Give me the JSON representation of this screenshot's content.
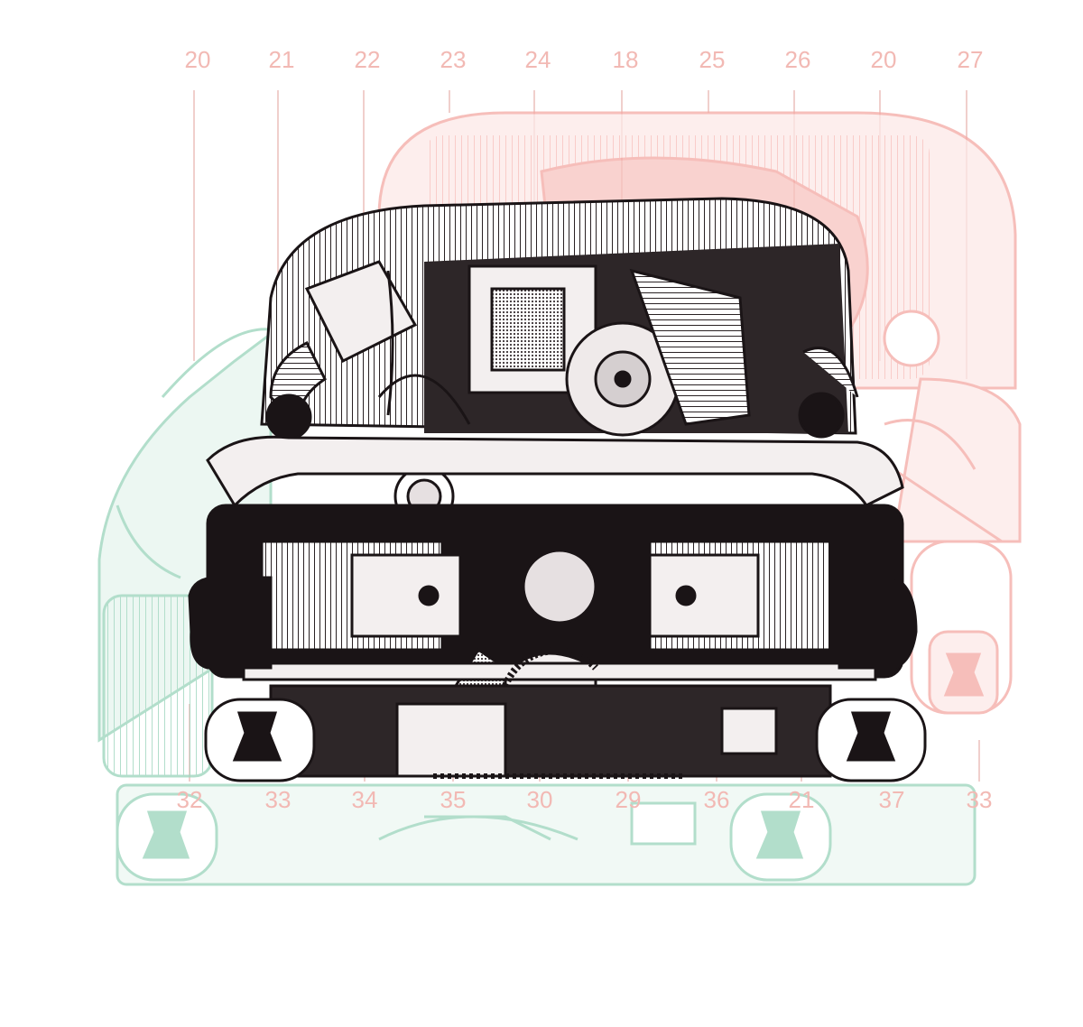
{
  "diagram": {
    "top_callouts": [
      "20",
      "21",
      "22",
      "23",
      "24",
      "18",
      "25",
      "26",
      "20",
      "27"
    ],
    "bottom_callouts": [
      "32",
      "33",
      "34",
      "35",
      "30",
      "29",
      "36",
      "21",
      "37",
      "33"
    ],
    "colors": {
      "callout_text": "#f2b9b4",
      "leader_line": "#e8b5b0",
      "red_layer": "#f4a9a4",
      "green_layer": "#9fd6bf",
      "ink": "#1a1416"
    }
  }
}
